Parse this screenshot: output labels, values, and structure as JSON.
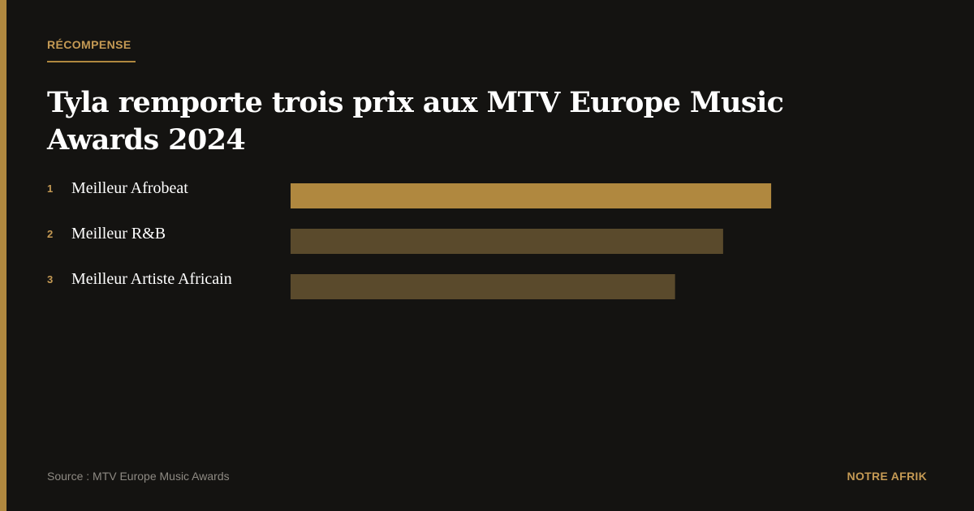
{
  "header": {
    "kicker": "RÉCOMPENSE",
    "title": "Tyla remporte trois prix aux MTV Europe Music Awards 2024"
  },
  "colors": {
    "accent": "#b0883f",
    "bar_highlight": "#b0883f",
    "bar_muted": "#5a4a2c",
    "background": "#141311"
  },
  "chart_data": {
    "type": "bar",
    "orientation": "horizontal",
    "categories": [
      "Meilleur Afrobeat",
      "Meilleur R&B",
      "Meilleur Artiste Africain"
    ],
    "ranks": [
      "1",
      "2",
      "3"
    ],
    "values": [
      3,
      2.7,
      2.4
    ],
    "xlim": [
      0,
      3.8
    ],
    "grid": false,
    "legend": "none"
  },
  "footer": {
    "source": "Source : MTV Europe Music Awards",
    "brand": "NOTRE AFRIK"
  }
}
